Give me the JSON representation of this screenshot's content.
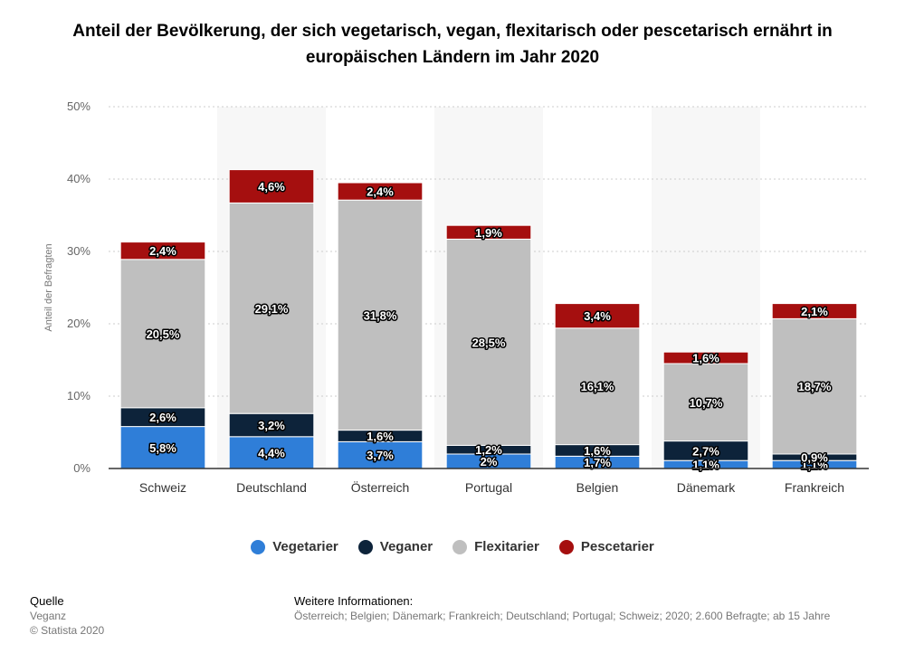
{
  "chart_data": {
    "type": "bar",
    "stacked": true,
    "title": "Anteil der Bevölkerung, der sich vegetarisch, vegan, flexitarisch oder pescetarisch ernährt in europäischen Ländern im Jahr 2020",
    "ylabel": "Anteil der Befragten",
    "ylim": [
      0,
      50
    ],
    "yticks": [
      "0%",
      "10%",
      "20%",
      "30%",
      "40%",
      "50%"
    ],
    "grid": true,
    "legend_position": "bottom",
    "categories": [
      "Schweiz",
      "Deutschland",
      "Österreich",
      "Portugal",
      "Belgien",
      "Dänemark",
      "Frankreich"
    ],
    "series": [
      {
        "name": "Vegetarier",
        "color": "#2f7ed8",
        "values": [
          5.8,
          4.4,
          3.7,
          2,
          1.7,
          1.1,
          1.1
        ],
        "labels": [
          "5,8%",
          "4,4%",
          "3,7%",
          "2%",
          "1,7%",
          "1,1%",
          "1,1%"
        ]
      },
      {
        "name": "Veganer",
        "color": "#0d233a",
        "values": [
          2.6,
          3.2,
          1.6,
          1.2,
          1.6,
          2.7,
          0.9
        ],
        "labels": [
          "2,6%",
          "3,2%",
          "1,6%",
          "1,2%",
          "1,6%",
          "2,7%",
          "0,9%"
        ]
      },
      {
        "name": "Flexitarier",
        "color": "#bfbfbf",
        "values": [
          20.5,
          29.1,
          31.8,
          28.5,
          16.1,
          10.7,
          18.7
        ],
        "labels": [
          "20,5%",
          "29,1%",
          "31,8%",
          "28,5%",
          "16,1%",
          "10,7%",
          "18,7%"
        ]
      },
      {
        "name": "Pescetarier",
        "color": "#a50f0f",
        "values": [
          2.4,
          4.6,
          2.4,
          1.9,
          3.4,
          1.6,
          2.1
        ],
        "labels": [
          "2,4%",
          "4,6%",
          "2,4%",
          "1,9%",
          "3,4%",
          "1,6%",
          "2,1%"
        ]
      }
    ]
  },
  "footer": {
    "source_heading": "Quelle",
    "source": "Veganz",
    "copyright": "© Statista 2020",
    "info_heading": "Weitere Informationen:",
    "info": "Österreich; Belgien; Dänemark; Frankreich; Deutschland; Portugal; Schweiz; 2020; 2.600 Befragte; ab 15 Jahre"
  }
}
